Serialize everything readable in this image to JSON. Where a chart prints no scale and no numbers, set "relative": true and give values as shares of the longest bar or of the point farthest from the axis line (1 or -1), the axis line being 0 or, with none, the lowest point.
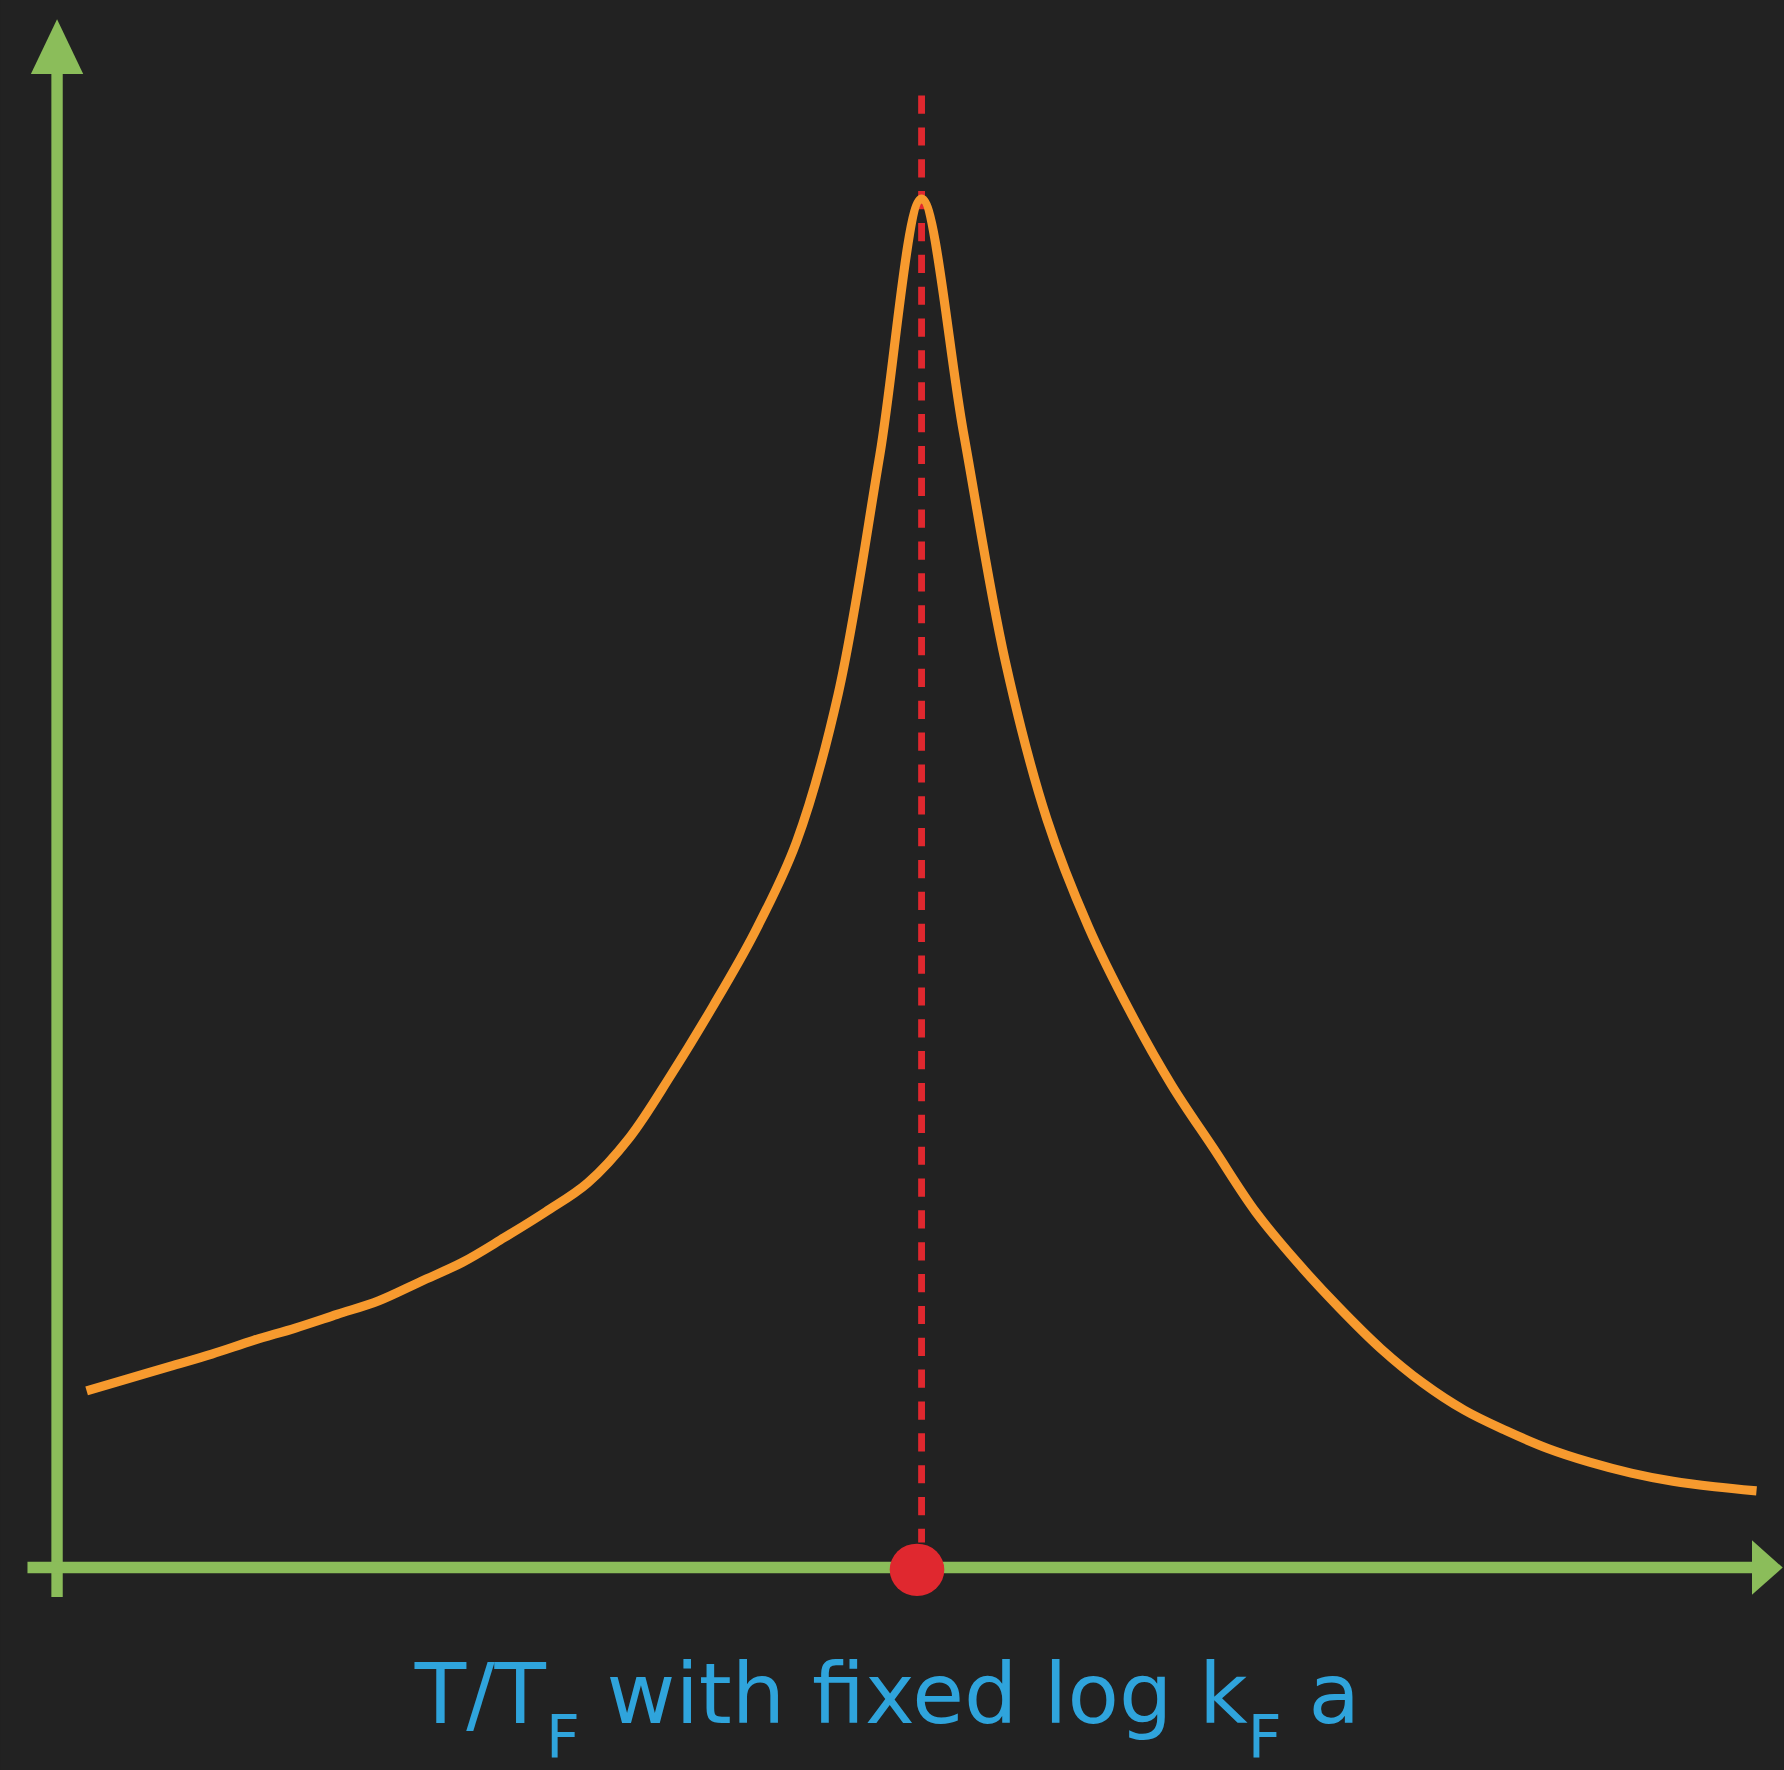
{
  "chart_data": {
    "type": "line",
    "relative": true,
    "xlabel": "T/T$_{F}$ with fixed log k$_{F}$ a",
    "categories": [
      null,
      null,
      null,
      null,
      null,
      null,
      null,
      null,
      null,
      null,
      null,
      null,
      null,
      null,
      null,
      null,
      null,
      null,
      null,
      null,
      null,
      null,
      null,
      null,
      null,
      null,
      null,
      null,
      null,
      null,
      null,
      null,
      null,
      null,
      null,
      null,
      null,
      null,
      null,
      null,
      null
    ],
    "series": [
      {
        "color": "#f79a2e",
        "values": [
          0.129,
          0.138,
          0.147,
          0.156,
          0.166,
          0.175,
          0.185,
          0.195,
          0.209,
          0.223,
          0.241,
          0.26,
          0.281,
          0.314,
          0.36,
          0.41,
          0.464,
          0.53,
          0.638,
          0.813,
          1,
          0.83,
          0.663,
          0.547,
          0.468,
          0.406,
          0.352,
          0.306,
          0.26,
          0.223,
          0.19,
          0.16,
          0.135,
          0.115,
          0.1,
          0.087,
          0.077,
          0.069,
          0.063,
          0.059,
          0.056
        ]
      }
    ],
    "marker": "none",
    "line_style": "solid"
  }
}
